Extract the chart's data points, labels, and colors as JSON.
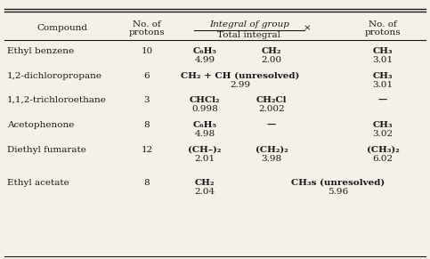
{
  "title": "",
  "bg_color": "#f5f0e8",
  "col_headers": [
    "Compound",
    "No. of\nprotons",
    "Integral of group\nTotal integral",
    "×",
    "No. of\nprotons"
  ],
  "rows": [
    {
      "compound": "Ethyl benzene",
      "no_protons": "10",
      "col3_line1": "C₆H₅",
      "col3_line2": "4.99",
      "col4_line1": "CH₂",
      "col4_line2": "2.00",
      "col5_line1": "CH₃",
      "col5_line2": "3.01"
    },
    {
      "compound": "1,2-dichloropropane",
      "no_protons": "6",
      "col3_line1": "CH₂ + CH (unresolved)",
      "col3_line2": "2.99",
      "col4_line1": "",
      "col4_line2": "",
      "col5_line1": "CH₃",
      "col5_line2": "3.01"
    },
    {
      "compound": "1,1,2-trichloroethane",
      "no_protons": "3",
      "col3_line1": "CHCl₂",
      "col3_line2": "0.998",
      "col4_line1": "CH₂Cl",
      "col4_line2": "2.002",
      "col5_line1": "—",
      "col5_line2": ""
    },
    {
      "compound": "Acetophenone",
      "no_protons": "8",
      "col3_line1": "C₆H₅",
      "col3_line2": "4.98",
      "col4_line1": "—",
      "col4_line2": "",
      "col5_line1": "CH₃",
      "col5_line2": "3.02"
    },
    {
      "compound": "Diethyl fumarate",
      "no_protons": "12",
      "col3_line1": "(CH–)₂",
      "col3_line2": "2.01",
      "col4_line1": "(CH₂)₂",
      "col4_line2": "3.98",
      "col5_line1": "(CH₃)₂",
      "col5_line2": "6.02"
    },
    {
      "compound": "Ethyl acetate",
      "no_protons": "8",
      "col3_line1": "CH₂",
      "col3_line2": "2.04",
      "col4_line1": "CH₃s (unresolved)",
      "col4_line2": "5.96",
      "col5_line1": "",
      "col5_line2": ""
    }
  ],
  "text_color": "#1a1a1a",
  "font_size": 7.5,
  "header_font_size": 7.5
}
